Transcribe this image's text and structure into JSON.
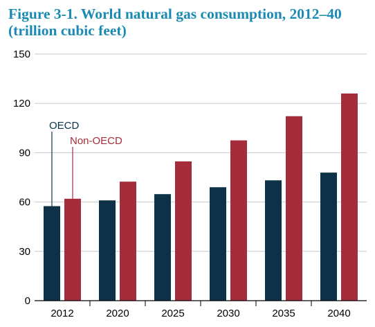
{
  "chart_data": {
    "type": "bar",
    "title_line1": "Figure 3-1. World natural gas consumption, 2012–40",
    "title_line2": "(trillion cubic feet)",
    "categories": [
      "2012",
      "2020",
      "2025",
      "2030",
      "2035",
      "2040"
    ],
    "series": [
      {
        "name": "OECD",
        "color": "#0d3247",
        "values": [
          57.5,
          61,
          64.8,
          69,
          73.2,
          77.9
        ]
      },
      {
        "name": "Non-OECD",
        "color": "#a72c3b",
        "values": [
          62,
          72.4,
          84.7,
          97.5,
          112.2,
          126
        ]
      }
    ],
    "ylim": [
      0,
      150
    ],
    "yticks": [
      0,
      30,
      60,
      90,
      120,
      150
    ],
    "grid": true
  }
}
